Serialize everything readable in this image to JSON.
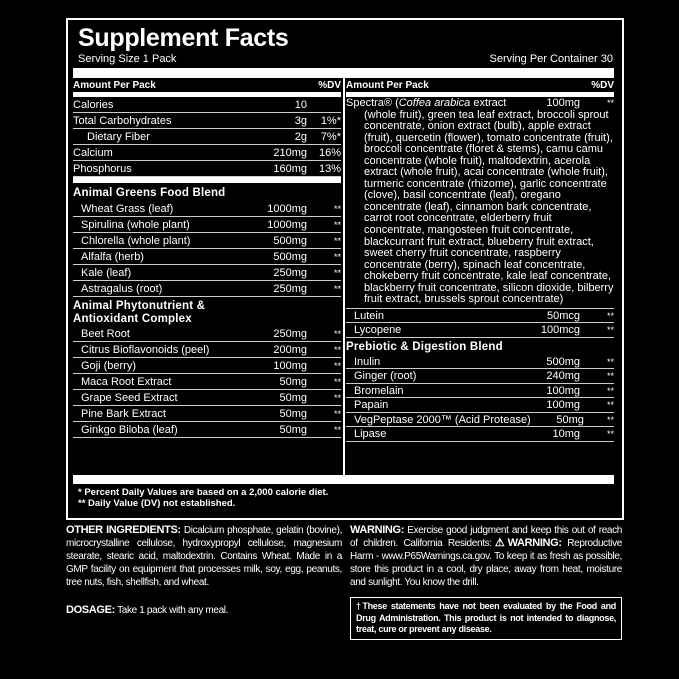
{
  "title": "Supplement Facts",
  "serving_size": "Serving Size 1 Pack",
  "servings_per_container": "Serving Per Container 30",
  "header": {
    "amount": "Amount Per Pack",
    "dv": "%DV"
  },
  "nutrients": [
    {
      "name": "Calories",
      "amount": "10",
      "dv": ""
    },
    {
      "name": "Total Carbohydrates",
      "amount": "3g",
      "dv": "1%*"
    },
    {
      "name": "Dietary Fiber",
      "amount": "2g",
      "dv": "7%*",
      "sub": true
    },
    {
      "name": "Calcium",
      "amount": "210mg",
      "dv": "16%"
    },
    {
      "name": "Phosphorus",
      "amount": "160mg",
      "dv": "13%"
    }
  ],
  "greens": {
    "title": "Animal Greens Food Blend",
    "items": [
      {
        "name": "Wheat Grass (leaf)",
        "amount": "1000mg",
        "dv": "**"
      },
      {
        "name": "Spirulina (whole plant)",
        "amount": "1000mg",
        "dv": "**"
      },
      {
        "name": "Chlorella (whole plant)",
        "amount": "500mg",
        "dv": "**"
      },
      {
        "name": "Alfalfa (herb)",
        "amount": "500mg",
        "dv": "**"
      },
      {
        "name": "Kale (leaf)",
        "amount": "250mg",
        "dv": "**"
      },
      {
        "name": "Astragalus (root)",
        "amount": "250mg",
        "dv": "**"
      }
    ]
  },
  "phyto": {
    "title_line1": "Animal Phytonutrient &",
    "title_line2": "Antioxidant Complex",
    "items": [
      {
        "name": "Beet Root",
        "amount": "250mg",
        "dv": "**"
      },
      {
        "name": "Citrus Bioflavonoids (peel)",
        "amount": "200mg",
        "dv": "**"
      },
      {
        "name": "Goji (berry)",
        "amount": "100mg",
        "dv": "**"
      },
      {
        "name": "Maca Root Extract",
        "amount": "50mg",
        "dv": "**"
      },
      {
        "name": "Grape Seed Extract",
        "amount": "50mg",
        "dv": "**"
      },
      {
        "name": "Pine Bark Extract",
        "amount": "50mg",
        "dv": "**"
      },
      {
        "name": "Ginkgo Biloba (leaf)",
        "amount": "50mg",
        "dv": "**"
      }
    ]
  },
  "spectra": {
    "name": "Spectra® (",
    "italic": "Coffea arabica",
    "name_end": " extract",
    "amount": "100mg",
    "dv": "**",
    "detail": "(whole fruit), green tea leaf extract, broccoli sprout concentrate, onion extract (bulb), apple extract (fruit), quercetin (flower), tomato concentrate (fruit), broccoli concentrate (floret & stems), camu camu concentrate (whole fruit), maltodextrin, acerola extract (whole fruit), acai concentrate (whole fruit), turmeric concentrate (rhizome), garlic concentrate (clove), basil concentrate (leaf), oregano concentrate (leaf), cinnamon bark concentrate, carrot root concentrate, elderberry fruit concentrate, mangosteen fruit concentrate, blackcurrant fruit extract, blueberry fruit extract, sweet cherry fruit concentrate, raspberry concentrate (berry), spinach leaf concentrate, chokeberry fruit concentrate, kale leaf concentrate, blackberry fruit concentrate, silicon dioxide, bilberry fruit extract, brussels sprout concentrate)"
  },
  "spectra_items": [
    {
      "name": "Lutein",
      "amount": "50mcg",
      "dv": "**"
    },
    {
      "name": "Lycopene",
      "amount": "100mcg",
      "dv": "**"
    }
  ],
  "prebiotic": {
    "title": "Prebiotic & Digestion Blend",
    "items": [
      {
        "name": "Inulin",
        "amount": "500mg",
        "dv": "**"
      },
      {
        "name": "Ginger (root)",
        "amount": "240mg",
        "dv": "**"
      },
      {
        "name": "Bromelain",
        "amount": "100mg",
        "dv": "**"
      },
      {
        "name": "Papain",
        "amount": "100mg",
        "dv": "**"
      },
      {
        "name": "VegPeptase 2000™ (Acid Protease)",
        "amount": "50mg",
        "dv": "**"
      },
      {
        "name": "Lipase",
        "amount": "10mg",
        "dv": "**"
      }
    ]
  },
  "footnotes": [
    "* Percent Daily Values are based on a 2,000 calorie diet.",
    "** Daily Value (DV) not established."
  ],
  "other_ingredients": {
    "label": "OTHER INGREDIENTS:",
    "text": " Dicalcium phosphate, gelatin (bovine), microcrystalline cellulose, hydroxypropyl cellulose, magnesium stearate, stearic acid, maltodextrin. Contains Wheat. Made in a GMP facility on equipment that processes milk, soy, egg, peanuts, tree nuts, fish, shellfish, and wheat."
  },
  "dosage": {
    "label": "DOSAGE:",
    "text": " Take 1 pack with any meal."
  },
  "warning": {
    "label": "WARNING:",
    "text1": " Exercise good judgment and keep this out of reach of children. California Residents:",
    "label2": "⚠WARNING:",
    "text2": " Reproductive Harm - www.P65Warnings.ca.gov. To keep it as fresh as possible, store this product in a cool, dry place, away from heat, moisture and sunlight. You know the drill."
  },
  "fda": "†These statements have not been evaluated by the Food and Drug Administration. This product is not intended to diagnose, treat, cure or prevent any disease."
}
